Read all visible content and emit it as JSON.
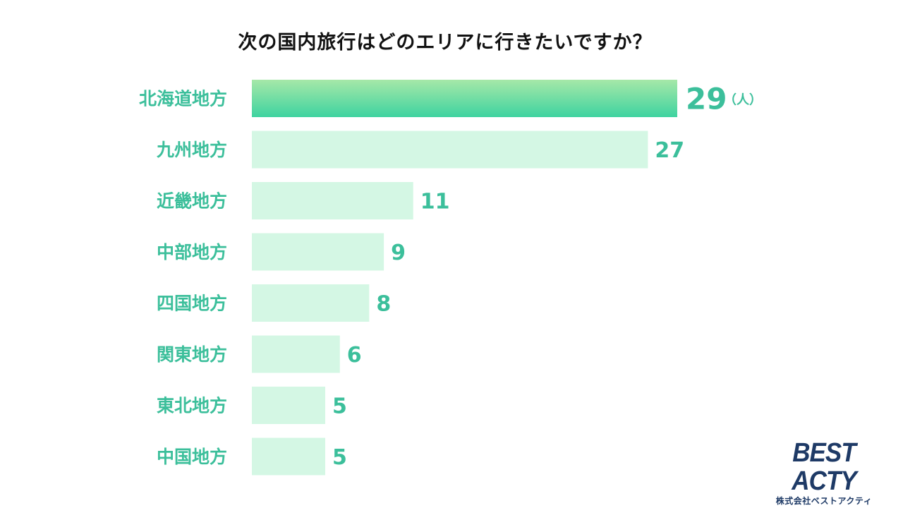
{
  "chart_data": {
    "type": "bar",
    "orientation": "horizontal",
    "title": "次の国内旅行はどのエリアに行きたいですか？",
    "categories": [
      "北海道地方",
      "九州地方",
      "近畿地方",
      "中部地方",
      "四国地方",
      "関東地方",
      "東北地方",
      "中国地方"
    ],
    "values": [
      29,
      27,
      11,
      9,
      8,
      6,
      5,
      5
    ],
    "unit": "（人）",
    "xlim": [
      0,
      29
    ],
    "grid": false,
    "colors": {
      "highlight_top": "#a6e8a8",
      "highlight_bottom": "#3ed3a0",
      "bar": "#d4f7e4",
      "label": "#3cbf9b"
    }
  },
  "logo": {
    "name": "BEST ACTY",
    "company": "株式会社ベストアクティ"
  }
}
